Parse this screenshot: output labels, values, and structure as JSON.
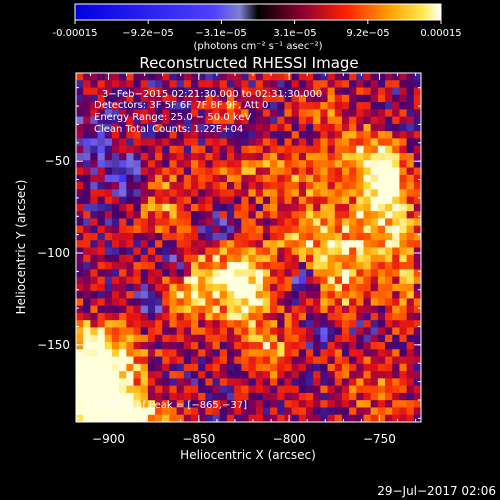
{
  "colorbar": {
    "ticks": [
      "-0.00015",
      "−9.2e−05",
      "−3.1e−05",
      "3.1e−05",
      "9.2e−05",
      "0.00015"
    ],
    "unit_label": "(photons cm⁻² s⁻¹ asec⁻²)",
    "range": [
      -0.00015,
      0.00015
    ]
  },
  "chart_data": {
    "type": "heatmap",
    "title": "Reconstructed RHESSI Image",
    "xlabel": "Heliocentric X (arcsec)",
    "ylabel": "Heliocentric Y (arcsec)",
    "xlim": [
      -918,
      -727
    ],
    "ylim": [
      -192,
      -2
    ],
    "xticks": [
      -900,
      -850,
      -800,
      -750
    ],
    "xtick_labels": [
      "−900",
      "−850",
      "−800",
      "−750"
    ],
    "yticks": [
      -50,
      -100,
      -150
    ],
    "ytick_labels": [
      "−50",
      "−100",
      "−150"
    ],
    "annotations": [
      "3−Feb−2015 02:21:30.000 to 02:31:30.000",
      "Detectors: 3F 5F 6F 7F 8F 9F, Att 0",
      "Energy Range: 25.0 − 50.0 keV",
      "Clean    Total Counts: 1.22E+04"
    ],
    "peak_label": "Position of Peak = [−865,−37]",
    "peak": [
      -865,
      -37
    ],
    "colormap": "rhessi-signed"
  },
  "footer": {
    "date": "29−Jul−2017 02:06"
  }
}
